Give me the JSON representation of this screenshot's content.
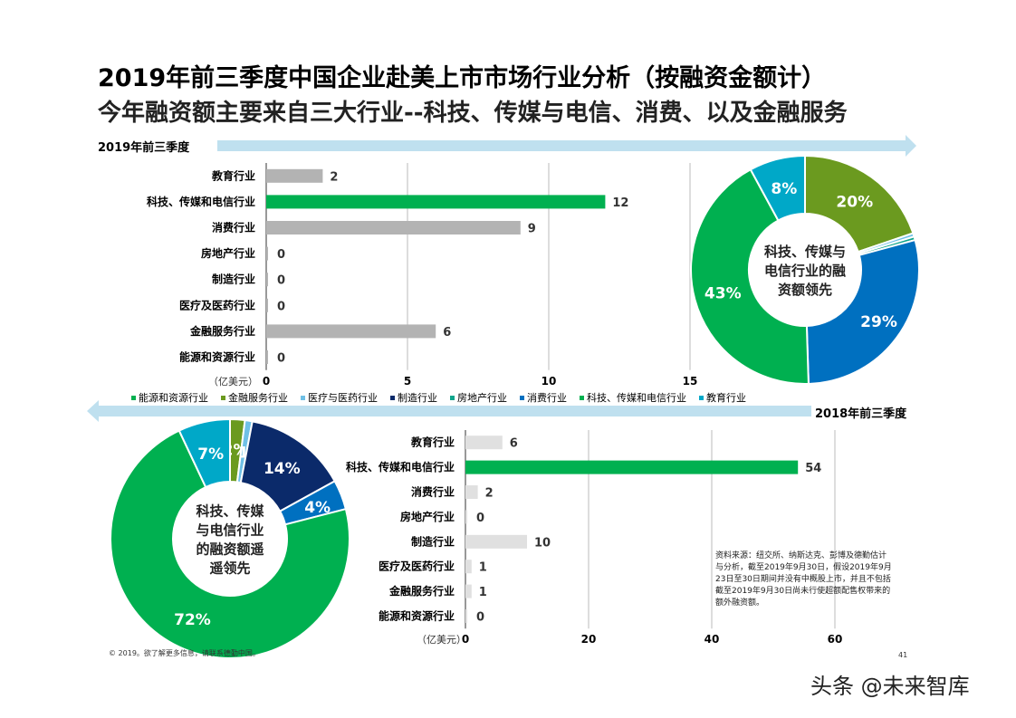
{
  "title": "2019年前三季度中国企业赴美上市市场行业分析（按融资金额计）",
  "subtitle": "今年融资额主要来自三大行业--科技、传媒与电信、消费、以及金融服务",
  "section_2019": "2019年前三季度",
  "section_2018": "2018年前三季度",
  "colors": {
    "grey_bar": "#b3b3b3",
    "light_grey_bar": "#e0e0e0",
    "green": "#00b050",
    "olive": "#6b9a1f",
    "light_blue": "#6fc0e6",
    "navy": "#0b2a6a",
    "teal": "#0fa58c",
    "blue": "#0070c0",
    "cyan": "#00a8c8",
    "arrow": "#bfe0ef"
  },
  "legend": [
    {
      "label": "能源和资源行业",
      "color": "#00b050"
    },
    {
      "label": "金融服务行业",
      "color": "#6b9a1f"
    },
    {
      "label": "医疗与医药行业",
      "color": "#6fc0e6"
    },
    {
      "label": "制造行业",
      "color": "#0b2a6a"
    },
    {
      "label": "房地产行业",
      "color": "#0fa58c"
    },
    {
      "label": "消费行业",
      "color": "#0070c0"
    },
    {
      "label": "科技、传媒和电信行业",
      "color": "#00b050"
    },
    {
      "label": "教育行业",
      "color": "#00a8c8"
    }
  ],
  "chart_data": [
    {
      "type": "bar",
      "orientation": "horizontal",
      "categories": [
        "教育行业",
        "科技、传媒和电信行业",
        "消费行业",
        "房地产行业",
        "制造行业",
        "医疗及医药行业",
        "金融服务行业",
        "能源和资源行业"
      ],
      "values": [
        2,
        12,
        9,
        0,
        0,
        0,
        6,
        0
      ],
      "value_labels": [
        "2",
        "12",
        "9",
        "0",
        "0",
        "0",
        "6",
        "0"
      ],
      "unit": "（亿美元）",
      "xlim": [
        0,
        15
      ],
      "ticks": [
        "0",
        "5",
        "10",
        "15"
      ],
      "tick_values": [
        0,
        5,
        10,
        15
      ],
      "highlight_index": 1,
      "grid": true
    },
    {
      "type": "pie",
      "center_text": [
        "科技、传媒与",
        "电信行业的融",
        "资额领先"
      ],
      "slices": [
        {
          "label": "20%",
          "value": 20,
          "color": "#6b9a1f"
        },
        {
          "label": "",
          "value": 0.5,
          "color": "#6fc0e6"
        },
        {
          "label": "",
          "value": 0.5,
          "color": "#0fa58c"
        },
        {
          "label": "29%",
          "value": 29,
          "color": "#0070c0"
        },
        {
          "label": "43%",
          "value": 43,
          "color": "#00b050"
        },
        {
          "label": "8%",
          "value": 8,
          "color": "#00a8c8"
        }
      ]
    },
    {
      "type": "pie",
      "center_text": [
        "科技、传媒",
        "与电信行业",
        "的融资额遥",
        "遥领先"
      ],
      "slices": [
        {
          "label": "2%",
          "value": 2,
          "color": "#6b9a1f"
        },
        {
          "label": "1%",
          "value": 1,
          "color": "#6fc0e6"
        },
        {
          "label": "14%",
          "value": 14,
          "color": "#0b2a6a"
        },
        {
          "label": "4%",
          "value": 4,
          "color": "#0070c0"
        },
        {
          "label": "72%",
          "value": 72,
          "color": "#00b050"
        },
        {
          "label": "7%",
          "value": 7,
          "color": "#00a8c8"
        }
      ]
    },
    {
      "type": "bar",
      "orientation": "horizontal",
      "categories": [
        "教育行业",
        "科技、传媒和电信行业",
        "消费行业",
        "房地产行业",
        "制造行业",
        "医疗及医药行业",
        "金融服务行业",
        "能源和资源行业"
      ],
      "values": [
        6,
        54,
        2,
        0,
        10,
        1,
        1,
        0
      ],
      "value_labels": [
        "6",
        "54",
        "2",
        "0",
        "10",
        "1",
        "1",
        "0"
      ],
      "unit": "（亿美元）",
      "xlim": [
        0,
        60
      ],
      "ticks": [
        "0",
        "20",
        "40",
        "60"
      ],
      "tick_values": [
        0,
        20,
        40,
        60
      ],
      "highlight_index": 1,
      "grid": true
    }
  ],
  "source_note": "资料来源：纽交所、纳斯达克、彭博及德勤估计与分析，截至2019年9月30日，假设2019年9月23日至30日期间并没有中概股上市，并且不包括截至2019年9月30日尚未行使超额配售权带来的额外融资额。",
  "copyright": "© 2019。欲了解更多信息，请联系德勤中国。",
  "page_number": "41",
  "watermark": "头条 @未来智库"
}
